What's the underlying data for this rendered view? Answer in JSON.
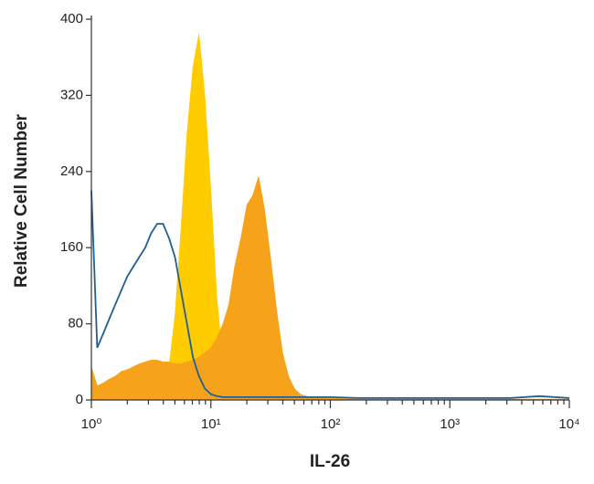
{
  "chart_data": {
    "type": "histogram-overlay",
    "xlabel": "IL-26",
    "ylabel": "Relative Cell Number",
    "xscale": "log",
    "xlim": [
      1,
      10000
    ],
    "ylim": [
      0,
      400
    ],
    "xticks": [
      {
        "value": 1,
        "label": "10⁰"
      },
      {
        "value": 10,
        "label": "10¹"
      },
      {
        "value": 100,
        "label": "10²"
      },
      {
        "value": 1000,
        "label": "10³"
      },
      {
        "value": 10000,
        "label": "10⁴"
      }
    ],
    "xminorticks": [
      2,
      3,
      4,
      5,
      6,
      7,
      8,
      9,
      20,
      30,
      40,
      50,
      60,
      70,
      80,
      90,
      200,
      300,
      400,
      500,
      600,
      700,
      800,
      900,
      2000,
      3000,
      4000,
      5000,
      6000,
      7000,
      8000,
      9000
    ],
    "yticks": [
      0,
      80,
      160,
      240,
      320,
      400
    ],
    "x": [
      1,
      1.12,
      1.26,
      1.41,
      1.58,
      1.78,
      2,
      2.24,
      2.51,
      2.82,
      3.16,
      3.55,
      3.98,
      4.47,
      5.01,
      5.62,
      6.31,
      7.08,
      7.94,
      8.91,
      10,
      11.2,
      12.6,
      14.1,
      15.8,
      17.8,
      20,
      22.4,
      25.1,
      28.2,
      31.6,
      35.5,
      39.8,
      44.7,
      50.1,
      56.2,
      63.1,
      70.8,
      79.4,
      89.1,
      100,
      178,
      316,
      562,
      1000,
      1780,
      3160,
      5620,
      10000
    ],
    "series": [
      {
        "color": "#ffcc00",
        "style": "fill",
        "values": [
          0,
          0,
          0,
          0,
          0,
          0,
          0,
          0,
          0,
          0,
          0,
          10,
          20,
          35,
          90,
          180,
          280,
          350,
          385,
          320,
          220,
          110,
          40,
          10,
          3,
          0,
          0,
          0,
          0,
          0,
          0,
          0,
          0,
          0,
          0,
          0,
          0,
          0,
          0,
          0,
          0,
          0,
          0,
          0,
          0,
          0,
          0,
          0,
          0
        ]
      },
      {
        "color": "#f7a21b",
        "style": "fill",
        "values": [
          35,
          15,
          18,
          22,
          25,
          30,
          32,
          35,
          38,
          40,
          42,
          42,
          40,
          40,
          38,
          38,
          40,
          42,
          45,
          50,
          55,
          65,
          80,
          100,
          140,
          170,
          205,
          215,
          235,
          200,
          150,
          95,
          50,
          25,
          12,
          6,
          4,
          3,
          3,
          2,
          2,
          1,
          1,
          1,
          1,
          1,
          1,
          1,
          1
        ]
      },
      {
        "color": "#1f5f96",
        "style": "line",
        "values": [
          220,
          55,
          70,
          85,
          100,
          115,
          130,
          140,
          150,
          160,
          175,
          185,
          185,
          170,
          150,
          115,
          80,
          45,
          25,
          12,
          6,
          4,
          3,
          3,
          3,
          3,
          3,
          3,
          3,
          3,
          3,
          3,
          3,
          3,
          3,
          3,
          3,
          3,
          3,
          3,
          3,
          2,
          2,
          2,
          2,
          2,
          2,
          4,
          2
        ]
      }
    ]
  }
}
